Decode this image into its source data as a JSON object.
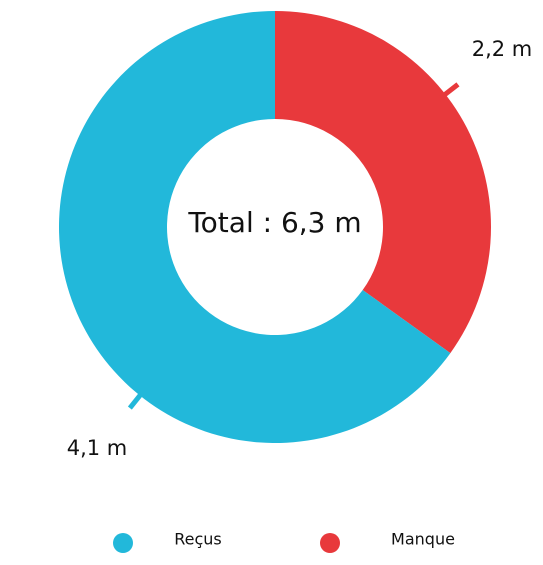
{
  "chart_data": {
    "type": "pie",
    "categories": [
      "Reçus",
      "Manque"
    ],
    "values": [
      4.1,
      2.2
    ],
    "value_labels": [
      "4,1 m",
      "2,2 m"
    ],
    "colors": [
      "#22b8da",
      "#e8393c"
    ],
    "center_label": "Total : 6,3 m"
  }
}
